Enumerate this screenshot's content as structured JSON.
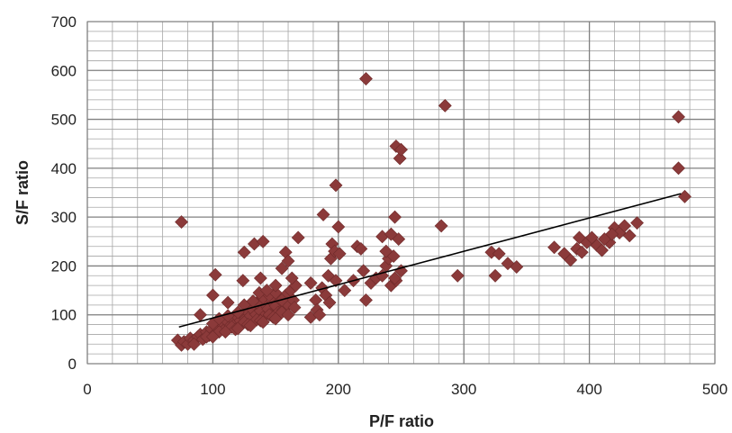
{
  "chart_data": {
    "type": "scatter",
    "title": "",
    "xlabel": "P/F ratio",
    "ylabel": "S/F ratio",
    "xlim": [
      0,
      500
    ],
    "ylim": [
      0,
      700
    ],
    "x_ticks": [
      0,
      100,
      200,
      300,
      400,
      500
    ],
    "y_ticks": [
      0,
      100,
      200,
      300,
      400,
      500,
      600,
      700
    ],
    "x_minor_step": 20,
    "y_minor_step": 20,
    "grid": true,
    "legend": "none",
    "marker": "diamond",
    "colors": {
      "marker": "#8B3A3A",
      "marker_stroke": "#6e2a2a",
      "trend": "#000000",
      "major_grid": "#808080",
      "minor_grid": "#a6a6a6"
    },
    "trendline": {
      "x": [
        73,
        473
      ],
      "y": [
        75,
        348
      ]
    },
    "points": [
      [
        72,
        48
      ],
      [
        75,
        38
      ],
      [
        77,
        45
      ],
      [
        80,
        40
      ],
      [
        82,
        52
      ],
      [
        85,
        48
      ],
      [
        88,
        55
      ],
      [
        90,
        60
      ],
      [
        92,
        50
      ],
      [
        95,
        65
      ],
      [
        97,
        58
      ],
      [
        99,
        70
      ],
      [
        102,
        62
      ],
      [
        104,
        75
      ],
      [
        106,
        68
      ],
      [
        108,
        80
      ],
      [
        110,
        72
      ],
      [
        112,
        85
      ],
      [
        114,
        78
      ],
      [
        116,
        90
      ],
      [
        118,
        82
      ],
      [
        120,
        95
      ],
      [
        122,
        88
      ],
      [
        124,
        100
      ],
      [
        126,
        92
      ],
      [
        128,
        105
      ],
      [
        130,
        98
      ],
      [
        132,
        110
      ],
      [
        134,
        102
      ],
      [
        136,
        115
      ],
      [
        138,
        108
      ],
      [
        140,
        95
      ],
      [
        142,
        120
      ],
      [
        144,
        112
      ],
      [
        146,
        100
      ],
      [
        148,
        125
      ],
      [
        150,
        118
      ],
      [
        152,
        105
      ],
      [
        154,
        130
      ],
      [
        156,
        110
      ],
      [
        158,
        140
      ],
      [
        160,
        120
      ],
      [
        162,
        150
      ],
      [
        164,
        130
      ],
      [
        166,
        160
      ],
      [
        85,
        40
      ],
      [
        95,
        55
      ],
      [
        105,
        65
      ],
      [
        115,
        75
      ],
      [
        125,
        85
      ],
      [
        135,
        90
      ],
      [
        145,
        100
      ],
      [
        155,
        105
      ],
      [
        165,
        115
      ],
      [
        118,
        70
      ],
      [
        128,
        80
      ],
      [
        138,
        88
      ],
      [
        148,
        95
      ],
      [
        100,
        55
      ],
      [
        110,
        65
      ],
      [
        120,
        72
      ],
      [
        130,
        78
      ],
      [
        140,
        85
      ],
      [
        150,
        92
      ],
      [
        160,
        100
      ],
      [
        100,
        82
      ],
      [
        105,
        92
      ],
      [
        112,
        98
      ],
      [
        120,
        105
      ],
      [
        130,
        115
      ],
      [
        135,
        125
      ],
      [
        140,
        135
      ],
      [
        145,
        140
      ],
      [
        150,
        145
      ],
      [
        155,
        130
      ],
      [
        125,
        120
      ],
      [
        132,
        128
      ],
      [
        137,
        145
      ],
      [
        143,
        150
      ],
      [
        90,
        100
      ],
      [
        100,
        140
      ],
      [
        102,
        182
      ],
      [
        112,
        125
      ],
      [
        124,
        170
      ],
      [
        125,
        228
      ],
      [
        133,
        245
      ],
      [
        138,
        175
      ],
      [
        140,
        250
      ],
      [
        150,
        160
      ],
      [
        155,
        195
      ],
      [
        158,
        228
      ],
      [
        160,
        210
      ],
      [
        163,
        175
      ],
      [
        168,
        258
      ],
      [
        75,
        290
      ],
      [
        178,
        165
      ],
      [
        182,
        130
      ],
      [
        187,
        155
      ],
      [
        188,
        305
      ],
      [
        192,
        180
      ],
      [
        194,
        215
      ],
      [
        195,
        245
      ],
      [
        197,
        230
      ],
      [
        198,
        365
      ],
      [
        200,
        280
      ],
      [
        201,
        225
      ],
      [
        198,
        170
      ],
      [
        190,
        140
      ],
      [
        183,
        110
      ],
      [
        178,
        95
      ],
      [
        185,
        100
      ],
      [
        193,
        125
      ],
      [
        205,
        150
      ],
      [
        212,
        170
      ],
      [
        215,
        240
      ],
      [
        218,
        235
      ],
      [
        220,
        190
      ],
      [
        222,
        130
      ],
      [
        226,
        165
      ],
      [
        230,
        175
      ],
      [
        235,
        180
      ],
      [
        238,
        200
      ],
      [
        240,
        215
      ],
      [
        242,
        160
      ],
      [
        244,
        220
      ],
      [
        245,
        300
      ],
      [
        246,
        170
      ],
      [
        248,
        255
      ],
      [
        250,
        190
      ],
      [
        238,
        230
      ],
      [
        235,
        260
      ],
      [
        242,
        265
      ],
      [
        245,
        175
      ],
      [
        222,
        583
      ],
      [
        246,
        445
      ],
      [
        249,
        420
      ],
      [
        250,
        438
      ],
      [
        285,
        528
      ],
      [
        282,
        282
      ],
      [
        295,
        180
      ],
      [
        322,
        228
      ],
      [
        325,
        180
      ],
      [
        328,
        225
      ],
      [
        335,
        205
      ],
      [
        342,
        198
      ],
      [
        372,
        238
      ],
      [
        380,
        225
      ],
      [
        385,
        212
      ],
      [
        390,
        235
      ],
      [
        394,
        228
      ],
      [
        398,
        248
      ],
      [
        402,
        258
      ],
      [
        406,
        242
      ],
      [
        410,
        232
      ],
      [
        416,
        248
      ],
      [
        420,
        278
      ],
      [
        424,
        268
      ],
      [
        428,
        282
      ],
      [
        432,
        262
      ],
      [
        438,
        288
      ],
      [
        412,
        255
      ],
      [
        418,
        265
      ],
      [
        392,
        258
      ],
      [
        471,
        505
      ],
      [
        471,
        400
      ],
      [
        476,
        342
      ]
    ]
  }
}
